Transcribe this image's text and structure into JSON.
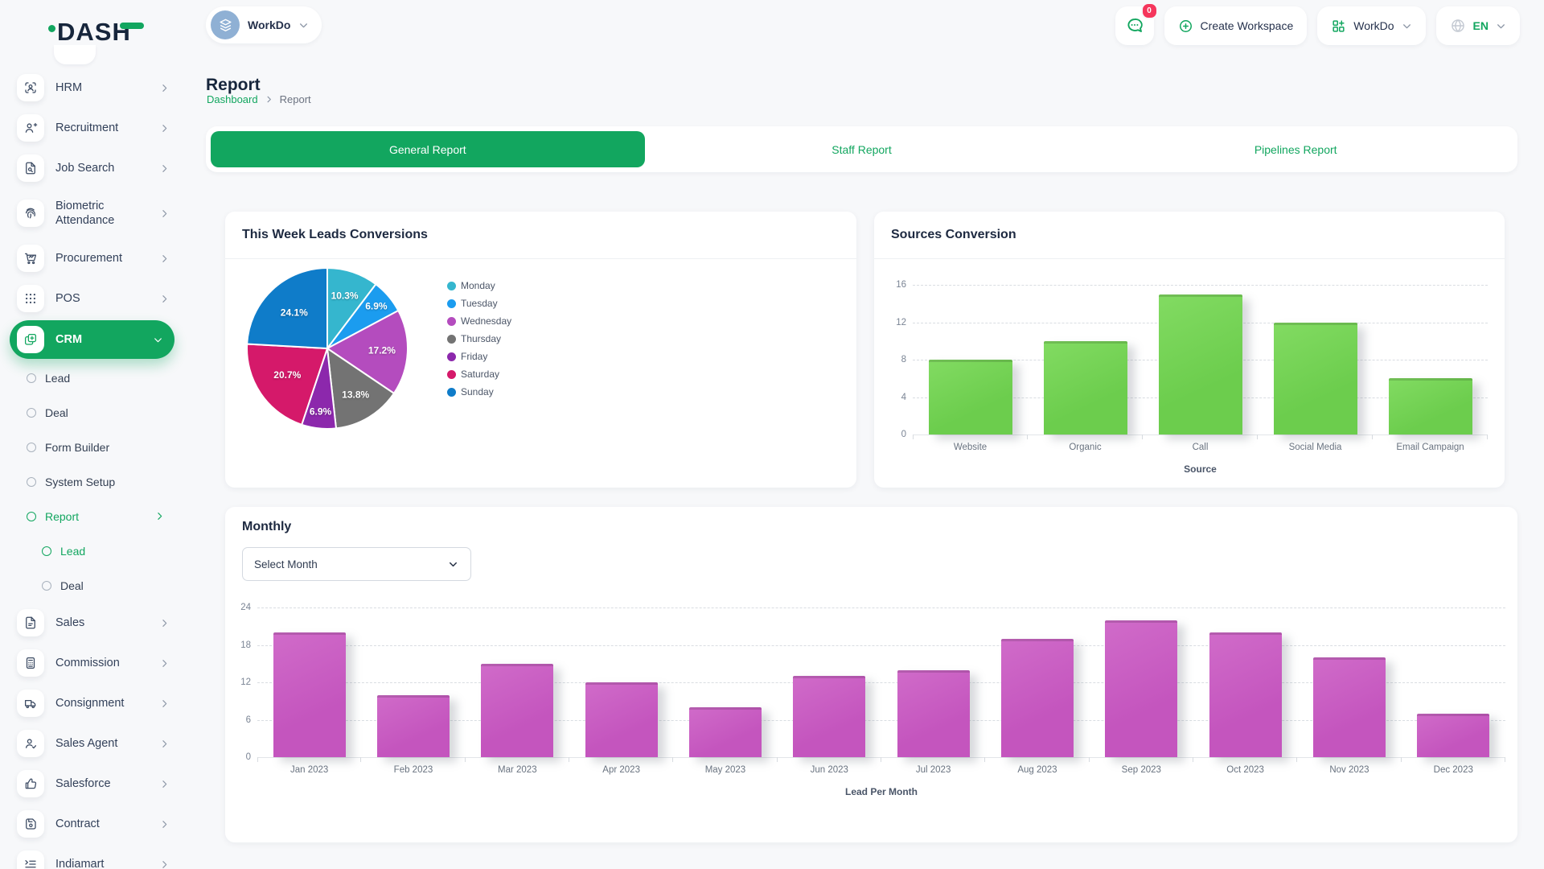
{
  "brand": {
    "logo_text": "DASH"
  },
  "topbar": {
    "workspace_chip": {
      "label": "WorkDo"
    },
    "messages_badge": "0",
    "create_workspace_label": "Create Workspace",
    "workdo_button_label": "WorkDo",
    "language": "EN"
  },
  "sidebar": {
    "items": [
      {
        "label": "HRM",
        "icon": "hrm-icon",
        "chevron": "right"
      },
      {
        "label": "Recruitment",
        "icon": "recruitment-icon",
        "chevron": "right"
      },
      {
        "label": "Job Search",
        "icon": "job-search-icon",
        "chevron": "right"
      },
      {
        "label": "Biometric Attendance",
        "icon": "biometric-attendance-icon",
        "chevron": "right",
        "tall": true
      },
      {
        "label": "Procurement",
        "icon": "procurement-icon",
        "chevron": "right"
      },
      {
        "label": "POS",
        "icon": "pos-icon",
        "chevron": "right"
      },
      {
        "label": "CRM",
        "icon": "crm-icon",
        "chevron": "down",
        "active": true,
        "children": [
          {
            "label": "Lead"
          },
          {
            "label": "Deal"
          },
          {
            "label": "Form Builder"
          },
          {
            "label": "System Setup"
          },
          {
            "label": "Report",
            "active": true,
            "chevron": "right",
            "children": [
              {
                "label": "Lead",
                "active": true
              },
              {
                "label": "Deal"
              }
            ]
          }
        ]
      },
      {
        "label": "Sales",
        "icon": "sales-icon",
        "chevron": "right"
      },
      {
        "label": "Commission",
        "icon": "commission-icon",
        "chevron": "right"
      },
      {
        "label": "Consignment",
        "icon": "consignment-icon",
        "chevron": "right"
      },
      {
        "label": "Sales Agent",
        "icon": "sales-agent-icon",
        "chevron": "right"
      },
      {
        "label": "Salesforce",
        "icon": "salesforce-icon",
        "chevron": "right"
      },
      {
        "label": "Contract",
        "icon": "contract-icon",
        "chevron": "right"
      },
      {
        "label": "Indiamart",
        "icon": "indiamart-icon",
        "chevron": "right"
      }
    ]
  },
  "page": {
    "title": "Report",
    "breadcrumb": [
      "Dashboard",
      "Report"
    ]
  },
  "tabs": [
    {
      "label": "General Report",
      "active": true
    },
    {
      "label": "Staff Report",
      "active": false
    },
    {
      "label": "Pipelines Report",
      "active": false
    }
  ],
  "monthly_card": {
    "select_label": "Select Month"
  },
  "colors": {
    "accent_green": "#12a65f",
    "badge_red": "#f5365c",
    "sources_bar": "#6ccd4d",
    "sources_bar_light": "#82db62",
    "monthly_bar": "#c455be",
    "monthly_bar_light": "#d06bc9"
  },
  "chart_data": [
    {
      "id": "leads_pie",
      "type": "pie",
      "title": "This Week Leads Conversions",
      "labels": [
        "Monday",
        "Tuesday",
        "Wednesday",
        "Thursday",
        "Friday",
        "Saturday",
        "Sunday"
      ],
      "values": [
        10.3,
        6.9,
        17.2,
        13.8,
        6.9,
        20.7,
        24.1
      ],
      "value_format": "percent",
      "colors": [
        "#35b6ce",
        "#1b9cef",
        "#b44cbe",
        "#737373",
        "#8c28ac",
        "#d5196a",
        "#0f7cc9"
      ],
      "legend_position": "right",
      "start_angle_deg": -90,
      "direction": "clockwise"
    },
    {
      "id": "sources_bar",
      "type": "bar",
      "title": "Sources Conversion",
      "categories": [
        "Website",
        "Organic",
        "Call",
        "Social Media",
        "Email Campaign"
      ],
      "values": [
        8,
        10,
        15,
        12,
        6
      ],
      "xlabel": "Source",
      "ylabel": "",
      "ylim": [
        0,
        16
      ],
      "ytick_step": 4,
      "grid": "dashed-horizontal"
    },
    {
      "id": "monthly_bar",
      "type": "bar",
      "title": "Monthly",
      "categories": [
        "Jan 2023",
        "Feb 2023",
        "Mar 2023",
        "Apr 2023",
        "May 2023",
        "Jun 2023",
        "Jul 2023",
        "Aug 2023",
        "Sep 2023",
        "Oct 2023",
        "Nov 2023",
        "Dec 2023"
      ],
      "values": [
        20,
        10,
        15,
        12,
        8,
        13,
        14,
        19,
        22,
        20,
        16,
        7
      ],
      "xlabel": "Lead Per Month",
      "ylabel": "",
      "ylim": [
        0,
        24
      ],
      "ytick_step": 6,
      "grid": "dashed-horizontal"
    }
  ]
}
